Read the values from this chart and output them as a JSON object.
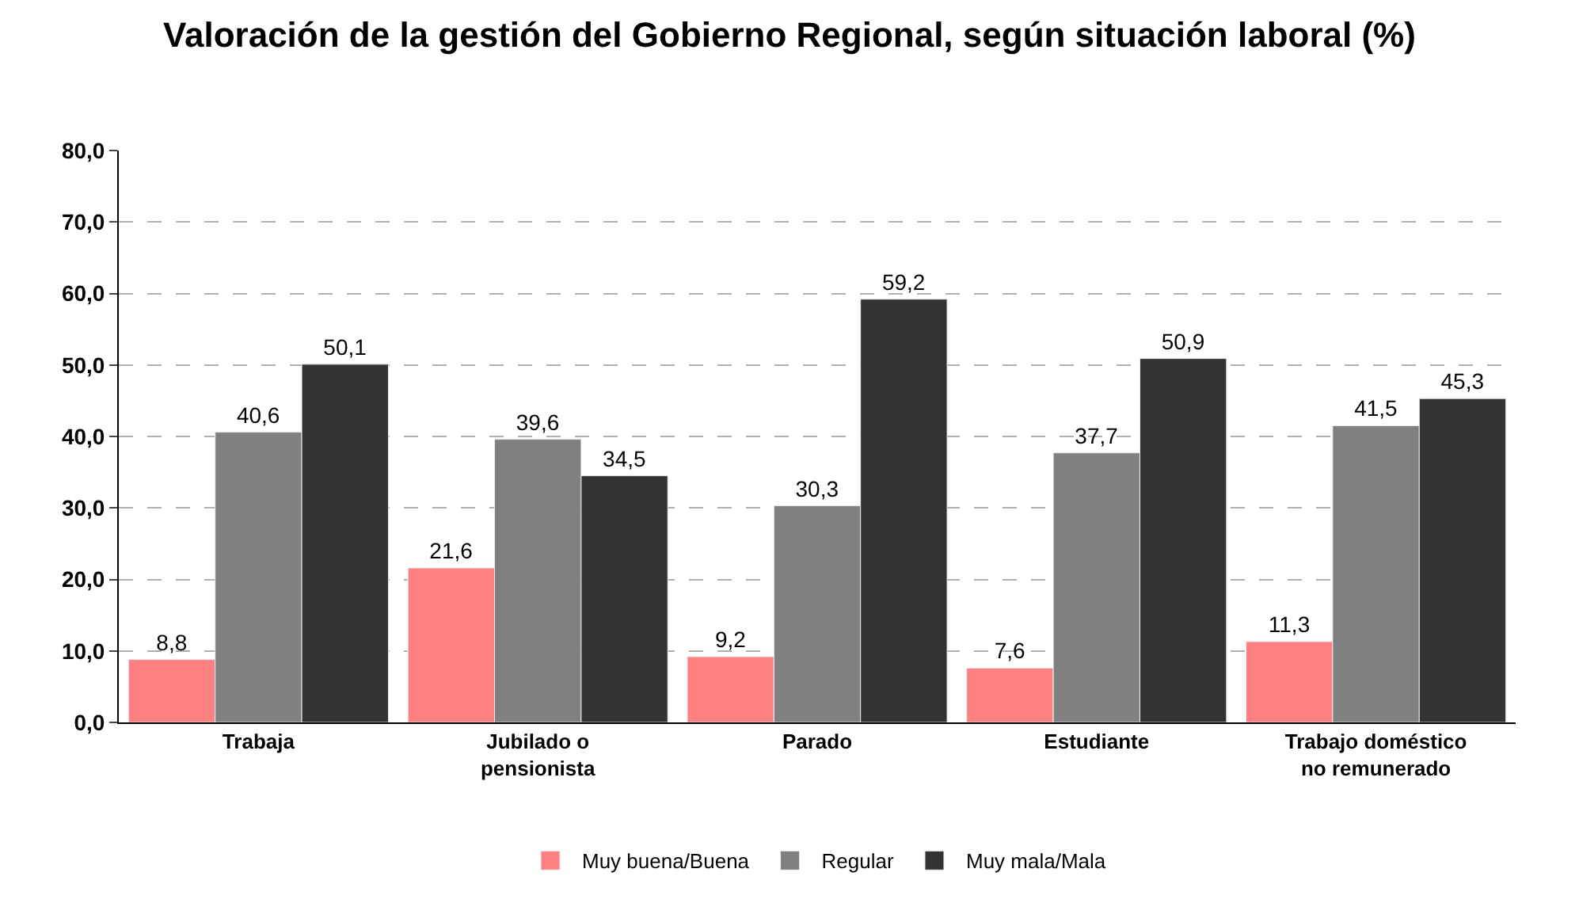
{
  "chart_data": {
    "type": "bar",
    "title": "Valoración de la gestión del Gobierno Regional, según situación laboral (%)",
    "categories": [
      "Trabaja",
      "Jubilado o\npensionista",
      "Parado",
      "Estudiante",
      "Trabajo doméstico\nno remunerado"
    ],
    "series": [
      {
        "name": "Muy buena/Buena",
        "color": "#ff8080",
        "values": [
          8.8,
          21.6,
          9.2,
          7.6,
          11.3
        ],
        "value_labels": [
          "8,8",
          "21,6",
          "9,2",
          "7,6",
          "11,3"
        ]
      },
      {
        "name": "Regular",
        "color": "#808080",
        "values": [
          40.6,
          39.6,
          30.3,
          37.7,
          41.5
        ],
        "value_labels": [
          "40,6",
          "39,6",
          "30,3",
          "37,7",
          "41,5"
        ]
      },
      {
        "name": "Muy mala/Mala",
        "color": "#333333",
        "values": [
          50.1,
          34.5,
          59.2,
          50.9,
          45.3
        ],
        "value_labels": [
          "50,1",
          "34,5",
          "59,2",
          "50,9",
          "45,3"
        ]
      }
    ],
    "ylim": [
      0,
      80
    ],
    "yticks": [
      {
        "value": 0,
        "label": "0,0"
      },
      {
        "value": 10,
        "label": "10,0"
      },
      {
        "value": 20,
        "label": "20,0"
      },
      {
        "value": 30,
        "label": "30,0"
      },
      {
        "value": 40,
        "label": "40,0"
      },
      {
        "value": 50,
        "label": "50,0"
      },
      {
        "value": 60,
        "label": "60,0"
      },
      {
        "value": 70,
        "label": "70,0"
      },
      {
        "value": 80,
        "label": "80,0"
      }
    ],
    "grid": "y",
    "legend": "bottom"
  }
}
